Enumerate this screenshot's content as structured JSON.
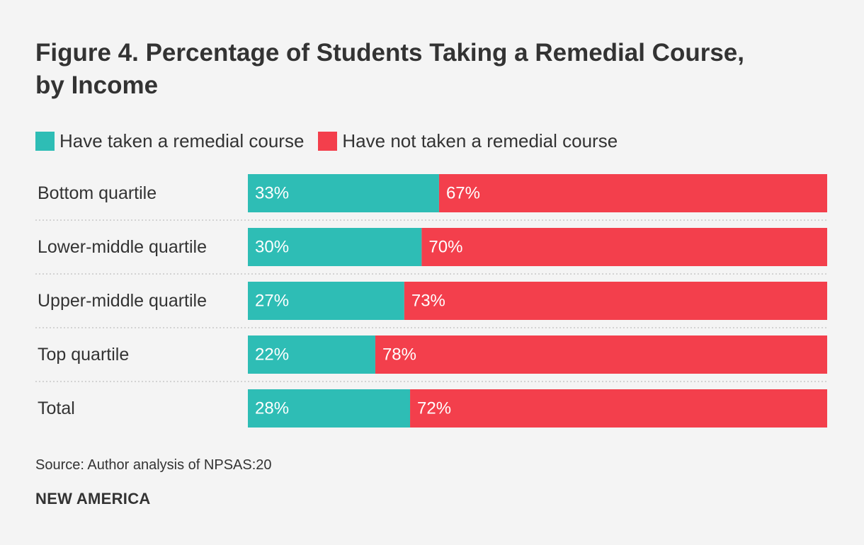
{
  "colors": {
    "taken": "#2ebdb5",
    "not_taken": "#f33f4c",
    "text": "#333333",
    "bar_label": "#ffffff",
    "divider": "#c8c8c8",
    "background": "#f4f4f4"
  },
  "chart_data": {
    "type": "bar",
    "orientation": "horizontal",
    "stacked": true,
    "percent_stacked": true,
    "title": "Figure 4. Percentage of Students Taking a Remedial Course, by Income",
    "title_lines": [
      "Figure 4. Percentage of Students Taking a Remedial Course,",
      "by Income"
    ],
    "categories": [
      "Bottom quartile",
      "Lower-middle quartile",
      "Upper-middle quartile",
      "Top quartile",
      "Total"
    ],
    "series": [
      {
        "name": "Have taken a remedial course",
        "values": [
          33,
          30,
          27,
          22,
          28
        ],
        "labels": [
          "33%",
          "30%",
          "27%",
          "22%",
          "28%"
        ]
      },
      {
        "name": "Have not taken a remedial course",
        "values": [
          67,
          70,
          73,
          78,
          72
        ],
        "labels": [
          "67%",
          "70%",
          "73%",
          "78%",
          "72%"
        ]
      }
    ],
    "xlim": [
      0,
      100
    ],
    "xlabel": "",
    "ylabel": "",
    "legend_position": "top-left",
    "grid": false
  },
  "legend": {
    "taken_label": "Have taken a remedial course",
    "not_taken_label": "Have not taken a remedial course"
  },
  "footer": {
    "source": "Source: Author analysis of NPSAS:20",
    "brand": "NEW AMERICA"
  }
}
